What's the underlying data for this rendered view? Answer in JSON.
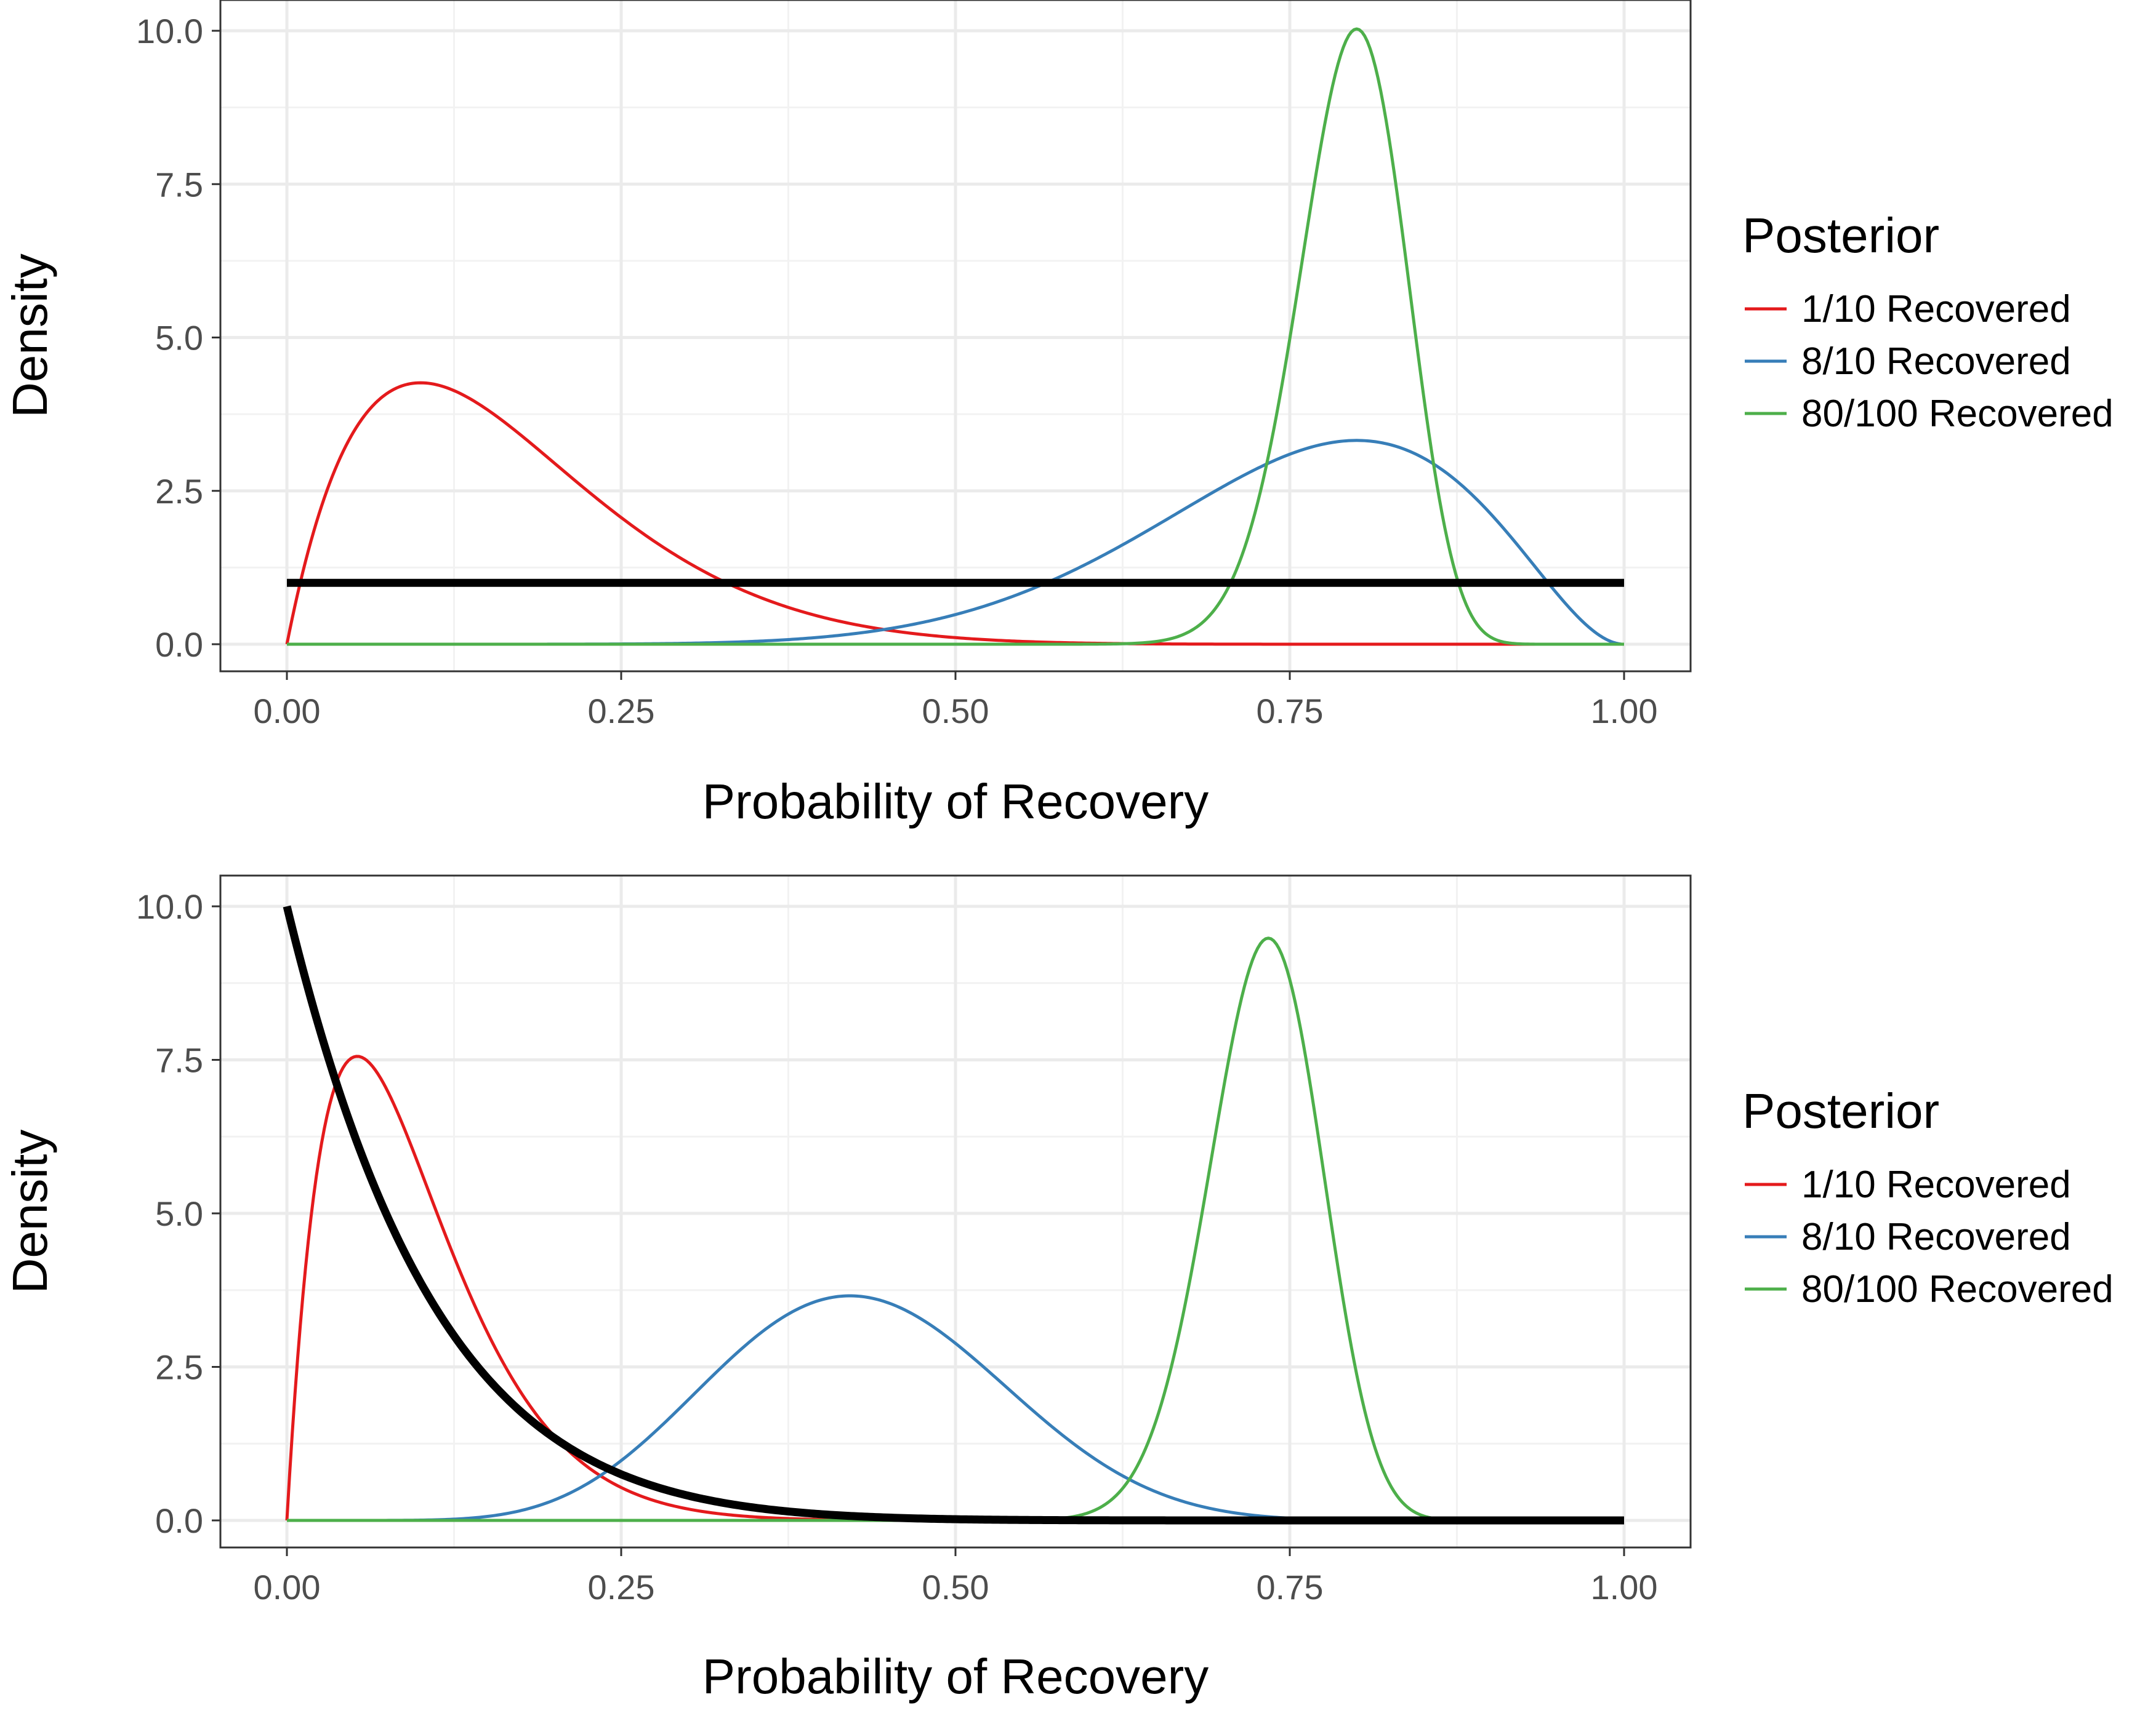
{
  "chart_data": [
    {
      "type": "line",
      "xlabel": "Probability of Recovery",
      "ylabel": "Density",
      "xlim": [
        0,
        1
      ],
      "ylim": [
        0,
        10
      ],
      "xticks": [
        "0.00",
        "0.25",
        "0.50",
        "0.75",
        "1.00"
      ],
      "yticks": [
        "0.0",
        "2.5",
        "5.0",
        "7.5",
        "10.0"
      ],
      "grid": true,
      "legend_title": "Posterior",
      "legend_position": "right",
      "prior": {
        "distribution": "beta",
        "a": 1,
        "b": 1,
        "color": "#000000"
      },
      "series": [
        {
          "name": "1/10 Recovered",
          "color": "#E41A1C",
          "distribution": "beta",
          "a": 2,
          "b": 10
        },
        {
          "name": "8/10 Recovered",
          "color": "#377EB8",
          "distribution": "beta",
          "a": 9,
          "b": 3
        },
        {
          "name": "80/100 Recovered",
          "color": "#4DAF4A",
          "distribution": "beta",
          "a": 81,
          "b": 21
        }
      ]
    },
    {
      "type": "line",
      "xlabel": "Probability of Recovery",
      "ylabel": "Density",
      "xlim": [
        0,
        1
      ],
      "ylim": [
        0,
        10
      ],
      "xticks": [
        "0.00",
        "0.25",
        "0.50",
        "0.75",
        "1.00"
      ],
      "yticks": [
        "0.0",
        "2.5",
        "5.0",
        "7.5",
        "10.0"
      ],
      "grid": true,
      "legend_title": "Posterior",
      "legend_position": "right",
      "prior": {
        "distribution": "beta",
        "a": 1,
        "b": 10,
        "color": "#000000"
      },
      "series": [
        {
          "name": "1/10 Recovered",
          "color": "#E41A1C",
          "distribution": "beta",
          "a": 2,
          "b": 19
        },
        {
          "name": "8/10 Recovered",
          "color": "#377EB8",
          "distribution": "beta",
          "a": 9,
          "b": 12
        },
        {
          "name": "80/100 Recovered",
          "color": "#4DAF4A",
          "distribution": "beta",
          "a": 81,
          "b": 30
        }
      ]
    }
  ]
}
